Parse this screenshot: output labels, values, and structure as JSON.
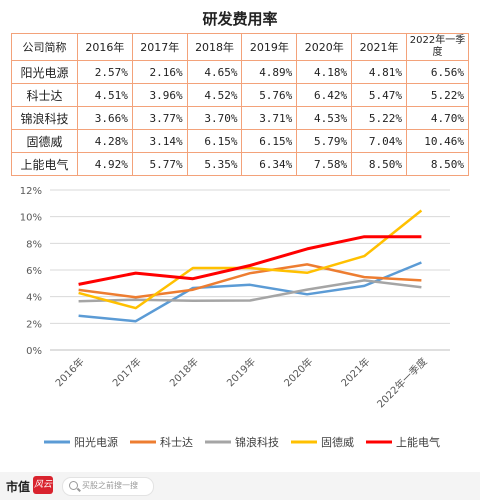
{
  "table": {
    "title": "研发费用率",
    "header": [
      "公司简称",
      "2016年",
      "2017年",
      "2018年",
      "2019年",
      "2020年",
      "2021年",
      "2022年一季度"
    ],
    "rows": [
      [
        "阳光电源",
        "2.57%",
        "2.16%",
        "4.65%",
        "4.89%",
        "4.18%",
        "4.81%",
        "6.56%"
      ],
      [
        "科士达",
        "4.51%",
        "3.96%",
        "4.52%",
        "5.76%",
        "6.42%",
        "5.47%",
        "5.22%"
      ],
      [
        "锦浪科技",
        "3.66%",
        "3.77%",
        "3.70%",
        "3.71%",
        "4.53%",
        "5.22%",
        "4.70%"
      ],
      [
        "固德威",
        "4.28%",
        "3.14%",
        "6.15%",
        "6.15%",
        "5.79%",
        "7.04%",
        "10.46%"
      ],
      [
        "上能电气",
        "4.92%",
        "5.77%",
        "5.35%",
        "6.34%",
        "7.58%",
        "8.50%",
        "8.50%"
      ]
    ]
  },
  "chart_data": {
    "type": "line",
    "categories": [
      "2016年",
      "2017年",
      "2018年",
      "2019年",
      "2020年",
      "2021年",
      "2022年一季度"
    ],
    "ylim": [
      0,
      12
    ],
    "yticks": [
      "0%",
      "2%",
      "4%",
      "6%",
      "8%",
      "10%",
      "12%"
    ],
    "grid": true,
    "legend_position": "bottom",
    "series": [
      {
        "name": "阳光电源",
        "color": "#5b9bd5",
        "values": [
          2.57,
          2.16,
          4.65,
          4.89,
          4.18,
          4.81,
          6.56
        ]
      },
      {
        "name": "科士达",
        "color": "#ed7d31",
        "values": [
          4.51,
          3.96,
          4.52,
          5.76,
          6.42,
          5.47,
          5.22
        ]
      },
      {
        "name": "锦浪科技",
        "color": "#a5a5a5",
        "values": [
          3.66,
          3.77,
          3.7,
          3.71,
          4.53,
          5.22,
          4.7
        ]
      },
      {
        "name": "固德威",
        "color": "#ffc000",
        "values": [
          4.28,
          3.14,
          6.15,
          6.15,
          5.79,
          7.04,
          10.46
        ]
      },
      {
        "name": "上能电气",
        "color": "#ff0000",
        "values": [
          4.92,
          5.77,
          5.35,
          6.34,
          7.58,
          8.5,
          8.5
        ]
      }
    ]
  },
  "footer": {
    "logo_text": "市值",
    "logo_mark": "风云",
    "search_placeholder": "买股之前搜一搜"
  }
}
